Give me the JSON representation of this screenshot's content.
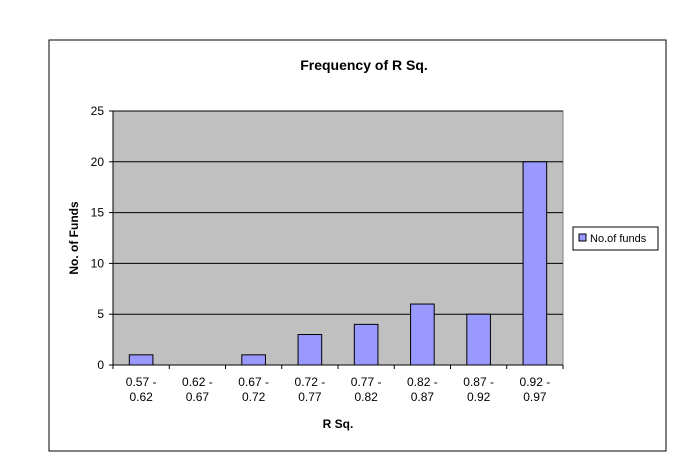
{
  "chart_data": {
    "type": "bar",
    "title": "Frequency of R Sq.",
    "xlabel": "R Sq.",
    "ylabel": "No. of Funds",
    "categories": [
      [
        "0.57 -",
        "0.62"
      ],
      [
        "0.62 -",
        "0.67"
      ],
      [
        "0.67 -",
        "0.72"
      ],
      [
        "0.72 -",
        "0.77"
      ],
      [
        "0.77 -",
        "0.82"
      ],
      [
        "0.82 -",
        "0.87"
      ],
      [
        "0.87 -",
        "0.92"
      ],
      [
        "0.92 -",
        "0.97"
      ]
    ],
    "series": [
      {
        "name": "No.of funds",
        "values": [
          1,
          0,
          1,
          3,
          4,
          6,
          5,
          20
        ]
      }
    ],
    "ylim": [
      0,
      25
    ],
    "yticks": [
      0,
      5,
      10,
      15,
      20,
      25
    ],
    "grid": true,
    "legend": "right",
    "colors": {
      "bar_fill": "#9999ff",
      "bar_stroke": "#000000",
      "plot_bg": "#c0c0c0",
      "grid": "#000000"
    }
  }
}
